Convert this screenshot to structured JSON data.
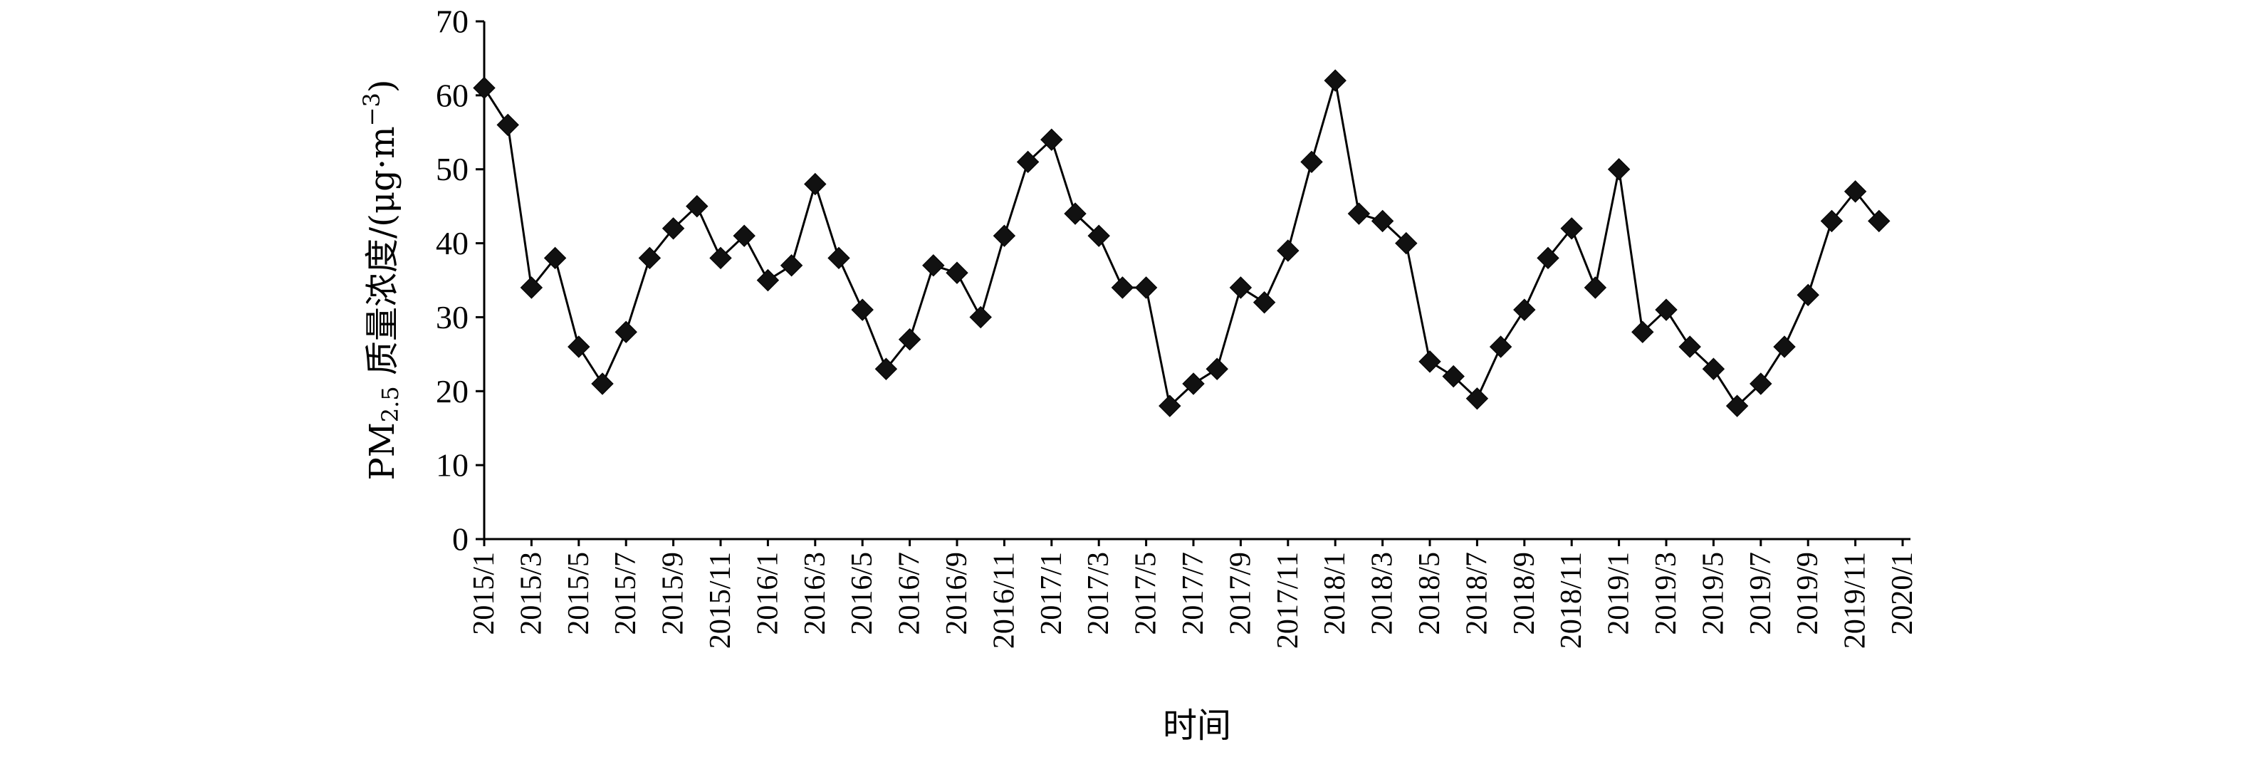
{
  "chart_data": {
    "type": "line",
    "ylabel": {
      "main": "PM",
      "sub": "2.5",
      "rest": " 质量浓度/(μg·m",
      "sup": "−3",
      "close": ")"
    },
    "xlabel": "时间",
    "ylim": [
      0,
      70
    ],
    "yticks": [
      0,
      10,
      20,
      30,
      40,
      50,
      60,
      70
    ],
    "x_tick_labels": [
      "2015/1",
      "2015/3",
      "2015/5",
      "2015/7",
      "2015/9",
      "2015/11",
      "2016/1",
      "2016/3",
      "2016/5",
      "2016/7",
      "2016/9",
      "2016/11",
      "2017/1",
      "2017/3",
      "2017/5",
      "2017/7",
      "2017/9",
      "2017/11",
      "2018/1",
      "2018/3",
      "2018/5",
      "2018/7",
      "2018/9",
      "2018/11",
      "2019/1",
      "2019/3",
      "2019/5",
      "2019/7",
      "2019/9",
      "2019/11",
      "2020/1"
    ],
    "grid": false,
    "legend": "none",
    "marker": "diamond",
    "series": [
      {
        "x": [
          "2015/1",
          "2015/2",
          "2015/3",
          "2015/4",
          "2015/5",
          "2015/6",
          "2015/7",
          "2015/8",
          "2015/9",
          "2015/10",
          "2015/11",
          "2015/12",
          "2016/1",
          "2016/2",
          "2016/3",
          "2016/4",
          "2016/5",
          "2016/6",
          "2016/7",
          "2016/8",
          "2016/9",
          "2016/10",
          "2016/11",
          "2016/12",
          "2017/1",
          "2017/2",
          "2017/3",
          "2017/4",
          "2017/5",
          "2017/6",
          "2017/7",
          "2017/8",
          "2017/9",
          "2017/10",
          "2017/11",
          "2017/12",
          "2018/1",
          "2018/2",
          "2018/3",
          "2018/4",
          "2018/5",
          "2018/6",
          "2018/7",
          "2018/8",
          "2018/9",
          "2018/10",
          "2018/11",
          "2018/12",
          "2019/1",
          "2019/2",
          "2019/3",
          "2019/4",
          "2019/5",
          "2019/6",
          "2019/7",
          "2019/8",
          "2019/9",
          "2019/10",
          "2019/11",
          "2019/12"
        ],
        "values": [
          61,
          56,
          34,
          38,
          26,
          21,
          28,
          38,
          42,
          45,
          38,
          41,
          35,
          37,
          48,
          38,
          31,
          23,
          27,
          37,
          36,
          30,
          41,
          51,
          54,
          44,
          41,
          34,
          34,
          18,
          21,
          23,
          34,
          32,
          39,
          51,
          62,
          44,
          43,
          40,
          24,
          22,
          19,
          26,
          31,
          38,
          42,
          34,
          50,
          28,
          31,
          26,
          23,
          18,
          21,
          26,
          33,
          43,
          47,
          43
        ]
      }
    ]
  }
}
